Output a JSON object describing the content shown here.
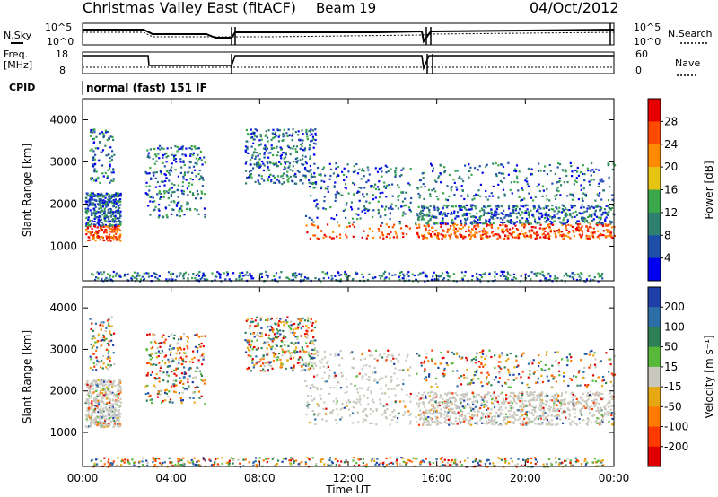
{
  "header": {
    "title": "Christmas Valley East (fitACF)",
    "beam": "Beam 19",
    "date": "04/Oct/2012"
  },
  "aux": {
    "nsky_label": "N.Sky",
    "nsearch_label": "N.Search",
    "freq_label": "Freq.",
    "freq_unit": "[MHz]",
    "nave_label": "Nave",
    "cpid_label": "CPID",
    "cpid_value": "normal (fast) 151 IF",
    "noise_ticks": [
      "10^5",
      "10^0"
    ],
    "freq_ticks": [
      "18",
      "8"
    ],
    "nave_ticks": [
      "60",
      "0"
    ]
  },
  "colors": {
    "power": [
      "#0000ee",
      "#1e4fa8",
      "#2e7f6e",
      "#3aa84a",
      "#e6c412",
      "#ff8a00",
      "#ff4a00",
      "#e80000"
    ],
    "velocity": [
      "#1e3fa8",
      "#2e6ea8",
      "#2e7f55",
      "#58b83a",
      "#c8c8be",
      "#e6a812",
      "#ff7a00",
      "#ff3a00",
      "#e00000"
    ]
  },
  "chart_data": [
    {
      "type": "heatmap",
      "panel": "power",
      "ylabel": "Slant Range [km]",
      "y_ticks": [
        1000,
        2000,
        3000,
        4000
      ],
      "ylim": [
        180,
        4500
      ],
      "xlim_hours": [
        0,
        24
      ],
      "colorbar": {
        "label": "Power [dB]",
        "ticks": [
          "4",
          "8",
          "12",
          "16",
          "20",
          "24",
          "28"
        ]
      }
    },
    {
      "type": "heatmap",
      "panel": "velocity",
      "ylabel": "Slant Range [km]",
      "y_ticks": [
        1000,
        2000,
        3000,
        4000
      ],
      "ylim": [
        180,
        4500
      ],
      "xlim_hours": [
        0,
        24
      ],
      "colorbar": {
        "label": "Velocity [m s⁻¹]",
        "ticks": [
          "200",
          "100",
          "50",
          "15",
          "-15",
          "-50",
          "-100",
          "-200"
        ]
      }
    }
  ],
  "xaxis": {
    "label": "Time UT",
    "ticks": [
      "00:00",
      "04:00",
      "08:00",
      "12:00",
      "16:00",
      "20:00",
      "00:00"
    ]
  }
}
